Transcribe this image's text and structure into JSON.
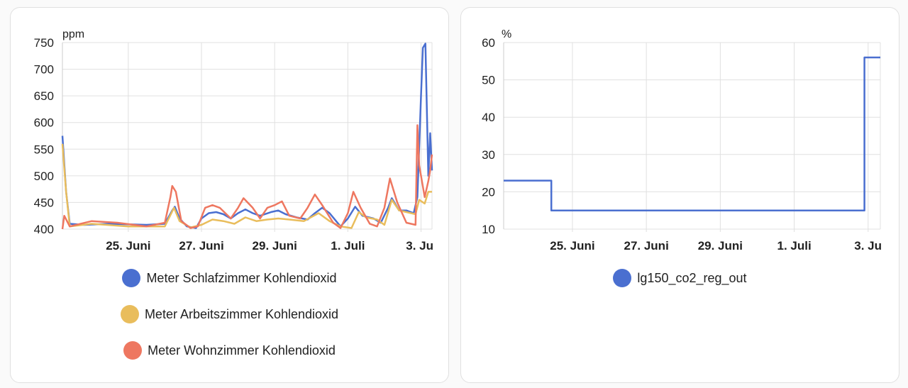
{
  "chart_data": [
    {
      "type": "line",
      "title": "",
      "ylabel": "ppm",
      "ylim": [
        400,
        750
      ],
      "yticks": [
        400,
        450,
        500,
        550,
        600,
        650,
        700,
        750
      ],
      "xlim_days_from_25_juni": [
        -1.8,
        8.3
      ],
      "xticks": [
        {
          "day": 0,
          "label": "25. Juni"
        },
        {
          "day": 2,
          "label": "27. Juni"
        },
        {
          "day": 4,
          "label": "29. Juni"
        },
        {
          "day": 6,
          "label": "1. Juli"
        },
        {
          "day": 8,
          "label": "3. Ju"
        }
      ],
      "grid": true,
      "legend": "bottom",
      "series": [
        {
          "name": "Meter Schlafzimmer Kohlendioxid",
          "color": "#4a6fd0",
          "points": [
            [
              -1.8,
              575
            ],
            [
              -1.7,
              470
            ],
            [
              -1.6,
              410
            ],
            [
              -1.2,
              408
            ],
            [
              -0.5,
              410
            ],
            [
              0.5,
              408
            ],
            [
              1.0,
              410
            ],
            [
              1.2,
              435
            ],
            [
              1.27,
              442
            ],
            [
              1.4,
              420
            ],
            [
              1.6,
              405
            ],
            [
              1.85,
              402
            ],
            [
              2.0,
              420
            ],
            [
              2.2,
              430
            ],
            [
              2.4,
              432
            ],
            [
              2.6,
              428
            ],
            [
              2.8,
              420
            ],
            [
              3.0,
              430
            ],
            [
              3.2,
              437
            ],
            [
              3.4,
              430
            ],
            [
              3.6,
              425
            ],
            [
              3.9,
              432
            ],
            [
              4.1,
              435
            ],
            [
              4.3,
              428
            ],
            [
              4.6,
              422
            ],
            [
              4.9,
              418
            ],
            [
              5.1,
              430
            ],
            [
              5.3,
              440
            ],
            [
              5.5,
              430
            ],
            [
              5.8,
              405
            ],
            [
              6.0,
              420
            ],
            [
              6.2,
              442
            ],
            [
              6.4,
              425
            ],
            [
              6.7,
              420
            ],
            [
              6.9,
              412
            ],
            [
              7.1,
              440
            ],
            [
              7.2,
              458
            ],
            [
              7.4,
              435
            ],
            [
              7.6,
              435
            ],
            [
              7.8,
              430
            ],
            [
              7.9,
              460
            ],
            [
              8.0,
              650
            ],
            [
              8.05,
              740
            ],
            [
              8.12,
              748
            ],
            [
              8.2,
              500
            ],
            [
              8.25,
              580
            ],
            [
              8.3,
              510
            ]
          ]
        },
        {
          "name": "Meter Arbeitszimmer Kohlendioxid",
          "color": "#e9bd5c",
          "points": [
            [
              -1.8,
              560
            ],
            [
              -1.7,
              470
            ],
            [
              -1.6,
              405
            ],
            [
              -1.0,
              410
            ],
            [
              0,
              405
            ],
            [
              1.0,
              405
            ],
            [
              1.25,
              440
            ],
            [
              1.4,
              415
            ],
            [
              1.7,
              403
            ],
            [
              2.0,
              408
            ],
            [
              2.3,
              418
            ],
            [
              2.6,
              415
            ],
            [
              2.9,
              410
            ],
            [
              3.2,
              422
            ],
            [
              3.5,
              415
            ],
            [
              3.8,
              418
            ],
            [
              4.1,
              420
            ],
            [
              4.4,
              418
            ],
            [
              4.8,
              415
            ],
            [
              5.2,
              430
            ],
            [
              5.5,
              415
            ],
            [
              5.8,
              405
            ],
            [
              6.1,
              402
            ],
            [
              6.3,
              432
            ],
            [
              6.5,
              422
            ],
            [
              6.8,
              418
            ],
            [
              7.0,
              408
            ],
            [
              7.2,
              455
            ],
            [
              7.4,
              435
            ],
            [
              7.6,
              432
            ],
            [
              7.85,
              428
            ],
            [
              7.95,
              455
            ],
            [
              8.1,
              448
            ],
            [
              8.2,
              470
            ],
            [
              8.3,
              470
            ]
          ]
        },
        {
          "name": "Meter Wohnzimmer Kohlendioxid",
          "color": "#ee7760",
          "points": [
            [
              -1.8,
              400
            ],
            [
              -1.75,
              425
            ],
            [
              -1.6,
              405
            ],
            [
              -1.0,
              415
            ],
            [
              -0.3,
              412
            ],
            [
              0.5,
              405
            ],
            [
              1.0,
              412
            ],
            [
              1.15,
              460
            ],
            [
              1.2,
              481
            ],
            [
              1.3,
              470
            ],
            [
              1.45,
              415
            ],
            [
              1.7,
              402
            ],
            [
              1.9,
              405
            ],
            [
              2.1,
              440
            ],
            [
              2.3,
              445
            ],
            [
              2.5,
              440
            ],
            [
              2.8,
              420
            ],
            [
              3.0,
              440
            ],
            [
              3.15,
              458
            ],
            [
              3.4,
              440
            ],
            [
              3.6,
              420
            ],
            [
              3.8,
              440
            ],
            [
              4.0,
              445
            ],
            [
              4.2,
              452
            ],
            [
              4.4,
              425
            ],
            [
              4.7,
              420
            ],
            [
              4.9,
              440
            ],
            [
              5.1,
              465
            ],
            [
              5.3,
              445
            ],
            [
              5.6,
              412
            ],
            [
              5.8,
              402
            ],
            [
              6.0,
              430
            ],
            [
              6.15,
              470
            ],
            [
              6.35,
              440
            ],
            [
              6.6,
              410
            ],
            [
              6.8,
              405
            ],
            [
              7.0,
              440
            ],
            [
              7.15,
              495
            ],
            [
              7.35,
              450
            ],
            [
              7.6,
              412
            ],
            [
              7.85,
              408
            ],
            [
              7.9,
              595
            ],
            [
              7.95,
              520
            ],
            [
              8.1,
              460
            ],
            [
              8.2,
              490
            ],
            [
              8.25,
              510
            ],
            [
              8.3,
              540
            ]
          ]
        }
      ]
    },
    {
      "type": "line",
      "title": "",
      "ylabel": "%",
      "ylim": [
        10,
        60
      ],
      "yticks": [
        10,
        20,
        30,
        40,
        50,
        60
      ],
      "xlim_days_from_25_juni": [
        -1.86,
        8.33
      ],
      "xticks": [
        {
          "day": 0,
          "label": "25. Juni"
        },
        {
          "day": 2,
          "label": "27. Juni"
        },
        {
          "day": 4,
          "label": "29. Juni"
        },
        {
          "day": 6,
          "label": "1. Juli"
        },
        {
          "day": 8,
          "label": "3. Ju"
        }
      ],
      "grid": true,
      "legend": "bottom",
      "step": true,
      "series": [
        {
          "name": "lg150_co2_reg_out",
          "color": "#4a6fd0",
          "points": [
            [
              -1.86,
              23
            ],
            [
              -0.57,
              23
            ],
            [
              -0.57,
              15
            ],
            [
              7.9,
              15
            ],
            [
              7.9,
              56
            ],
            [
              8.33,
              56
            ]
          ]
        }
      ]
    }
  ]
}
